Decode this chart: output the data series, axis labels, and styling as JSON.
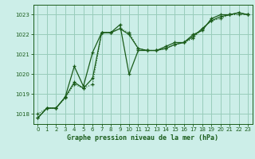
{
  "bg_color": "#cceee8",
  "grid_color": "#99ccbb",
  "line_color": "#1a5c1a",
  "title": "Graphe pression niveau de la mer (hPa)",
  "xlim": [
    -0.5,
    23.5
  ],
  "ylim": [
    1017.5,
    1023.5
  ],
  "yticks": [
    1018,
    1019,
    1020,
    1021,
    1022,
    1023
  ],
  "xticks": [
    0,
    1,
    2,
    3,
    4,
    5,
    6,
    7,
    8,
    9,
    10,
    11,
    12,
    13,
    14,
    15,
    16,
    17,
    18,
    19,
    20,
    21,
    22,
    23
  ],
  "series1_x": [
    0,
    1,
    2,
    3,
    4,
    5,
    6,
    7,
    8,
    9,
    10,
    11,
    12,
    13,
    14,
    15,
    16,
    17,
    18,
    19,
    20,
    21,
    22,
    23
  ],
  "series1_y": [
    1017.8,
    1018.3,
    1018.3,
    1018.85,
    1020.4,
    1019.4,
    1021.1,
    1022.1,
    1022.1,
    1022.5,
    1020.0,
    1021.2,
    1021.2,
    1021.2,
    1021.4,
    1021.6,
    1021.6,
    1022.0,
    1022.2,
    1022.8,
    1023.0,
    1023.0,
    1023.1,
    1023.0
  ],
  "series2_x": [
    0,
    1,
    2,
    3,
    4,
    5,
    6,
    7,
    8,
    9,
    10,
    11,
    12,
    13,
    14,
    15,
    16,
    17,
    18,
    19,
    20,
    21,
    22,
    23
  ],
  "series2_y": [
    1017.8,
    1018.3,
    1018.3,
    1018.85,
    1019.6,
    1019.3,
    1019.8,
    1022.1,
    1022.1,
    1022.3,
    1022.0,
    1021.3,
    1021.2,
    1021.2,
    1021.3,
    1021.5,
    1021.6,
    1021.9,
    1022.3,
    1022.7,
    1022.9,
    1023.0,
    1023.1,
    1023.0
  ],
  "series3_x": [
    0,
    1,
    2,
    3,
    4,
    5,
    6,
    7,
    8,
    9,
    10,
    11,
    12,
    13,
    14,
    15,
    16,
    17,
    18,
    19,
    20,
    21,
    22,
    23
  ],
  "series3_y": [
    1018.0,
    1018.3,
    1018.3,
    1018.8,
    1019.5,
    1019.3,
    1019.5,
    1022.1,
    1022.1,
    1022.3,
    1022.1,
    1021.3,
    1021.2,
    1021.2,
    1021.3,
    1021.5,
    1021.6,
    1021.8,
    1022.3,
    1022.7,
    1022.8,
    1023.0,
    1023.0,
    1023.0
  ]
}
